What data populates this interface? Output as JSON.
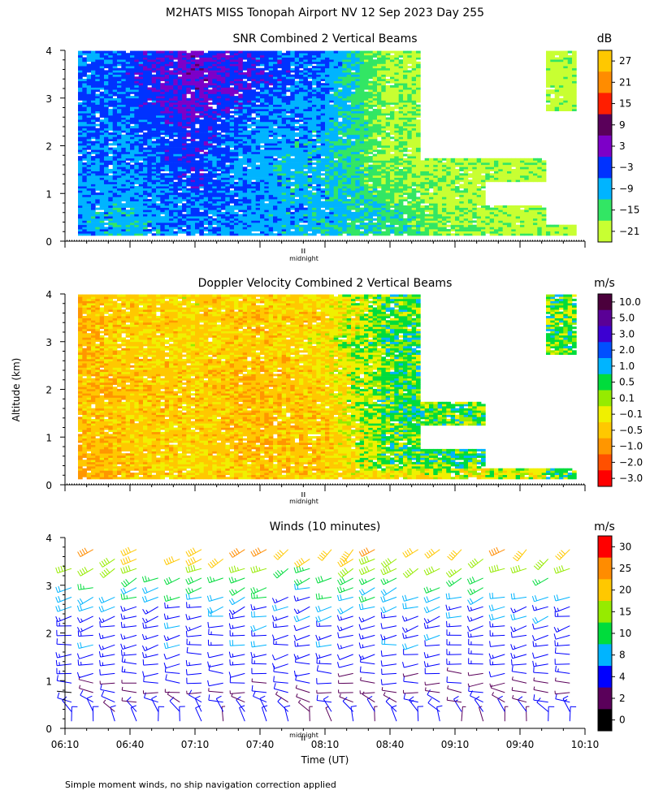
{
  "figure": {
    "title": "M2HATS MISS Tonopah Airport NV  12 Sep 2023 Day 255",
    "ylabel": "Altitude (km)",
    "xlabel": "Time (UT)",
    "midnight_label": "midnight",
    "footnote": "Simple moment winds, no ship navigation correction applied"
  },
  "colors": {
    "axis": "#000000",
    "dotted_baseline": "#000000"
  },
  "chart_data": [
    {
      "type": "heatmap",
      "name": "snr",
      "title": "SNR Combined 2 Vertical Beams",
      "units": "dB",
      "xlim_minutes_utc": [
        370,
        610
      ],
      "ylim_km": [
        0,
        4
      ],
      "yticks": [
        "0",
        "1",
        "2",
        "3",
        "4"
      ],
      "colorbar_labels": [
        "27",
        "21",
        "15",
        "9",
        "3",
        "−3",
        "−9",
        "−15",
        "−21"
      ],
      "colorbar_colors": [
        "#ffc800",
        "#ff8c00",
        "#ff1e00",
        "#5a005a",
        "#7d00c8",
        "#0032ff",
        "#00b4ff",
        "#32e664",
        "#c8ff32"
      ],
      "color_scale": [
        -24,
        30
      ],
      "profile_times_min": [
        376,
        400,
        430,
        460,
        490,
        520,
        550,
        580,
        605
      ],
      "profile_heights_km": [
        0.15,
        0.5,
        1.0,
        1.5,
        2.0,
        2.5,
        3.0,
        3.5,
        3.95
      ],
      "values": [
        [
          -8,
          -10,
          -6,
          -8,
          -10,
          -14,
          -17,
          -19,
          -20
        ],
        [
          -8,
          -10,
          -6,
          -8,
          -9,
          -12,
          -19,
          -20,
          null
        ],
        [
          -7,
          -8,
          -3,
          -8,
          -9,
          -17,
          -20,
          null,
          null
        ],
        [
          -6,
          -7,
          -2,
          -9,
          -10,
          -18,
          -20,
          -20,
          null
        ],
        [
          -6,
          -7,
          -1,
          -8,
          -9,
          -19,
          null,
          null,
          null
        ],
        [
          -5,
          -6,
          -1,
          -7,
          -8,
          -19,
          null,
          null,
          null
        ],
        [
          -5,
          -4,
          2,
          -4,
          -7,
          -20,
          null,
          null,
          -21
        ],
        [
          -5,
          -3,
          4,
          -2,
          -6,
          -20,
          null,
          null,
          -21
        ],
        [
          -6,
          -4,
          2,
          -3,
          -6,
          -20,
          null,
          null,
          -21
        ]
      ]
    },
    {
      "type": "heatmap",
      "name": "doppler",
      "title": "Doppler Velocity Combined 2 Vertical Beams",
      "units": "m/s",
      "xlim_minutes_utc": [
        370,
        610
      ],
      "ylim_km": [
        0,
        4
      ],
      "yticks": [
        "0",
        "1",
        "2",
        "3",
        "4"
      ],
      "colorbar_labels": [
        "10.0",
        "5.0",
        "3.0",
        "2.0",
        "1.0",
        "0.5",
        "0.1",
        "−0.1",
        "−0.5",
        "−1.0",
        "−2.0",
        "−3.0"
      ],
      "colorbar_colors": [
        "#4b003c",
        "#5a0096",
        "#3c00d2",
        "#0050ff",
        "#00b4ff",
        "#00dc3c",
        "#96eb00",
        "#f0f000",
        "#ffc800",
        "#ff9600",
        "#ff5000",
        "#ff0000"
      ],
      "profile_times_min": [
        376,
        400,
        430,
        460,
        490,
        520,
        550,
        580,
        605
      ],
      "profile_heights_km": [
        0.15,
        0.5,
        1.0,
        1.5,
        2.0,
        2.5,
        3.0,
        3.5,
        3.95
      ],
      "values": [
        [
          -1.2,
          -0.8,
          -0.6,
          -0.7,
          -0.6,
          -0.5,
          -0.3,
          -0.2,
          0.3
        ],
        [
          -1.0,
          -0.7,
          -0.5,
          -0.8,
          -0.7,
          0.2,
          0.3,
          null,
          null
        ],
        [
          -0.9,
          -0.7,
          -0.6,
          -0.9,
          -0.7,
          0.2,
          null,
          null,
          null
        ],
        [
          -0.8,
          -0.7,
          -0.6,
          -0.9,
          -0.6,
          0.3,
          0.2,
          null,
          null
        ],
        [
          -0.9,
          -0.8,
          -0.7,
          -0.9,
          -0.6,
          0.2,
          null,
          null,
          null
        ],
        [
          -0.8,
          -0.7,
          -0.6,
          -0.8,
          -0.5,
          0.2,
          null,
          null,
          null
        ],
        [
          -0.9,
          -0.6,
          -0.5,
          -0.7,
          -0.4,
          0.3,
          null,
          null,
          0.2
        ],
        [
          -1.0,
          -0.7,
          -0.6,
          -0.8,
          -0.6,
          0.2,
          null,
          null,
          0.1
        ],
        [
          -0.8,
          -0.6,
          -0.5,
          -0.7,
          -0.5,
          0.2,
          null,
          null,
          0.2
        ]
      ]
    },
    {
      "type": "barbs",
      "name": "winds",
      "title": "Winds (10 minutes)",
      "units": "m/s",
      "xlim_minutes_utc": [
        370,
        610
      ],
      "ylim_km": [
        0,
        4
      ],
      "yticks": [
        "0",
        "1",
        "2",
        "3",
        "4"
      ],
      "xtick_minutes": [
        370,
        400,
        430,
        460,
        490,
        520,
        550,
        580,
        610
      ],
      "xtick_labels": [
        "06:10",
        "06:40",
        "07:10",
        "07:40",
        "08:10",
        "08:40",
        "09:10",
        "09:40",
        "10:10"
      ],
      "midnight_minute": 480,
      "colorbar_labels": [
        "30",
        "25",
        "20",
        "15",
        "10",
        "8",
        "4",
        "2",
        "0"
      ],
      "colorbar_colors": [
        "#ff0000",
        "#ff8c00",
        "#ffc800",
        "#96eb00",
        "#00dc3c",
        "#00b4ff",
        "#0000ff",
        "#5a005a",
        "#000000"
      ],
      "profile_times_min": [
        373,
        383,
        393,
        403,
        413,
        423,
        433,
        443,
        453,
        463,
        473,
        483,
        493,
        503,
        513,
        523,
        533,
        543,
        553,
        563,
        573,
        583,
        593,
        603
      ],
      "heights_km": [
        0.15,
        0.35,
        0.55,
        0.75,
        0.95,
        1.15,
        1.35,
        1.55,
        1.75,
        1.95,
        2.15,
        2.35,
        2.55,
        2.75,
        2.95,
        3.15,
        3.35,
        3.55,
        3.75
      ],
      "speed_profile_ms": [
        4,
        5,
        4,
        3,
        4,
        5,
        6,
        6,
        7,
        7,
        7,
        8,
        8,
        9,
        10,
        12,
        16,
        20,
        25
      ],
      "direction_profile_deg": [
        190,
        220,
        250,
        265,
        270,
        272,
        275,
        278,
        280,
        280,
        282,
        285,
        288,
        290,
        292,
        295,
        300,
        305,
        310
      ]
    }
  ]
}
